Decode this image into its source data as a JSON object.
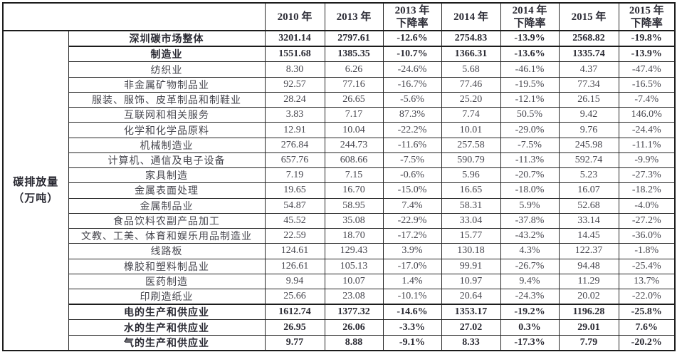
{
  "table": {
    "row_header": {
      "line1": "碳排放量",
      "line2": "（万吨）"
    },
    "columns": [
      {
        "line1": "2010 年",
        "line2": ""
      },
      {
        "line1": "2013 年",
        "line2": ""
      },
      {
        "line1": "2013 年",
        "line2": "下降率"
      },
      {
        "line1": "2014 年",
        "line2": ""
      },
      {
        "line1": "2014 年",
        "line2": "下降率"
      },
      {
        "line1": "2015 年",
        "line2": ""
      },
      {
        "line1": "2015 年",
        "line2": "下降率"
      }
    ],
    "rows": [
      {
        "label": "深圳碳市场整体",
        "bold": true,
        "values": [
          "3201.14",
          "2797.61",
          "-12.6%",
          "2754.83",
          "-13.9%",
          "2568.82",
          "-19.8%"
        ]
      },
      {
        "label": "制造业",
        "bold": true,
        "values": [
          "1551.68",
          "1385.35",
          "-10.7%",
          "1366.31",
          "-13.6%",
          "1335.74",
          "-13.9%"
        ]
      },
      {
        "label": "纺织业",
        "bold": false,
        "values": [
          "8.30",
          "6.26",
          "-24.6%",
          "5.68",
          "-46.1%",
          "4.37",
          "-47.4%"
        ]
      },
      {
        "label": "非金属矿物制品业",
        "bold": false,
        "values": [
          "92.57",
          "77.16",
          "-16.7%",
          "77.46",
          "-19.5%",
          "77.34",
          "-16.5%"
        ]
      },
      {
        "label": "服装、服饰、皮革制品和制鞋业",
        "bold": false,
        "values": [
          "28.24",
          "26.65",
          "-5.6%",
          "25.20",
          "-12.1%",
          "26.15",
          "-7.4%"
        ]
      },
      {
        "label": "互联网和相关服务",
        "bold": false,
        "values": [
          "3.83",
          "7.17",
          "87.3%",
          "7.74",
          "50.5%",
          "9.42",
          "146.0%"
        ]
      },
      {
        "label": "化学和化学品原料",
        "bold": false,
        "values": [
          "12.91",
          "10.04",
          "-22.2%",
          "10.01",
          "-29.0%",
          "9.76",
          "-24.4%"
        ]
      },
      {
        "label": "机械制造业",
        "bold": false,
        "values": [
          "276.84",
          "244.73",
          "-11.6%",
          "257.58",
          "-7.5%",
          "245.98",
          "-11.1%"
        ]
      },
      {
        "label": "计算机、通信及电子设备",
        "bold": false,
        "values": [
          "657.76",
          "608.66",
          "-7.5%",
          "590.79",
          "-11.3%",
          "592.74",
          "-9.9%"
        ]
      },
      {
        "label": "家具制造",
        "bold": false,
        "values": [
          "7.19",
          "7.15",
          "-0.6%",
          "5.96",
          "-20.7%",
          "5.23",
          "-27.3%"
        ]
      },
      {
        "label": "金属表面处理",
        "bold": false,
        "values": [
          "19.65",
          "16.70",
          "-15.0%",
          "16.65",
          "-18.0%",
          "16.07",
          "-18.2%"
        ]
      },
      {
        "label": "金属制品业",
        "bold": false,
        "values": [
          "54.87",
          "58.95",
          "7.4%",
          "58.31",
          "5.9%",
          "52.68",
          "-4.0%"
        ]
      },
      {
        "label": "食品饮料农副产品加工",
        "bold": false,
        "values": [
          "45.52",
          "35.08",
          "-22.9%",
          "33.04",
          "-37.8%",
          "33.14",
          "-27.2%"
        ]
      },
      {
        "label": "文教、工美、体育和娱乐用品制造业",
        "bold": false,
        "values": [
          "22.59",
          "18.70",
          "-17.2%",
          "15.77",
          "-43.2%",
          "14.45",
          "-36.0%"
        ]
      },
      {
        "label": "线路板",
        "bold": false,
        "values": [
          "124.61",
          "129.43",
          "3.9%",
          "130.18",
          "4.3%",
          "122.37",
          "-1.8%"
        ]
      },
      {
        "label": "橡胶和塑料制品业",
        "bold": false,
        "values": [
          "126.61",
          "105.13",
          "-17.0%",
          "99.91",
          "-26.7%",
          "94.48",
          "-25.4%"
        ]
      },
      {
        "label": "医药制造",
        "bold": false,
        "values": [
          "9.94",
          "10.07",
          "1.4%",
          "10.97",
          "9.4%",
          "11.29",
          "13.7%"
        ]
      },
      {
        "label": "印刷造纸业",
        "bold": false,
        "values": [
          "25.66",
          "23.08",
          "-10.1%",
          "20.64",
          "-24.3%",
          "20.02",
          "-22.0%"
        ]
      },
      {
        "label": "电的生产和供应业",
        "bold": true,
        "values": [
          "1612.74",
          "1377.32",
          "-14.6%",
          "1353.17",
          "-19.2%",
          "1196.28",
          "-25.8%"
        ]
      },
      {
        "label": "水的生产和供应业",
        "bold": true,
        "values": [
          "26.95",
          "26.06",
          "-3.3%",
          "27.02",
          "0.3%",
          "29.01",
          "7.6%"
        ]
      },
      {
        "label": "气的生产和供应业",
        "bold": true,
        "values": [
          "9.77",
          "8.88",
          "-9.1%",
          "8.33",
          "-17.3%",
          "7.79",
          "-20.2%"
        ]
      }
    ]
  }
}
